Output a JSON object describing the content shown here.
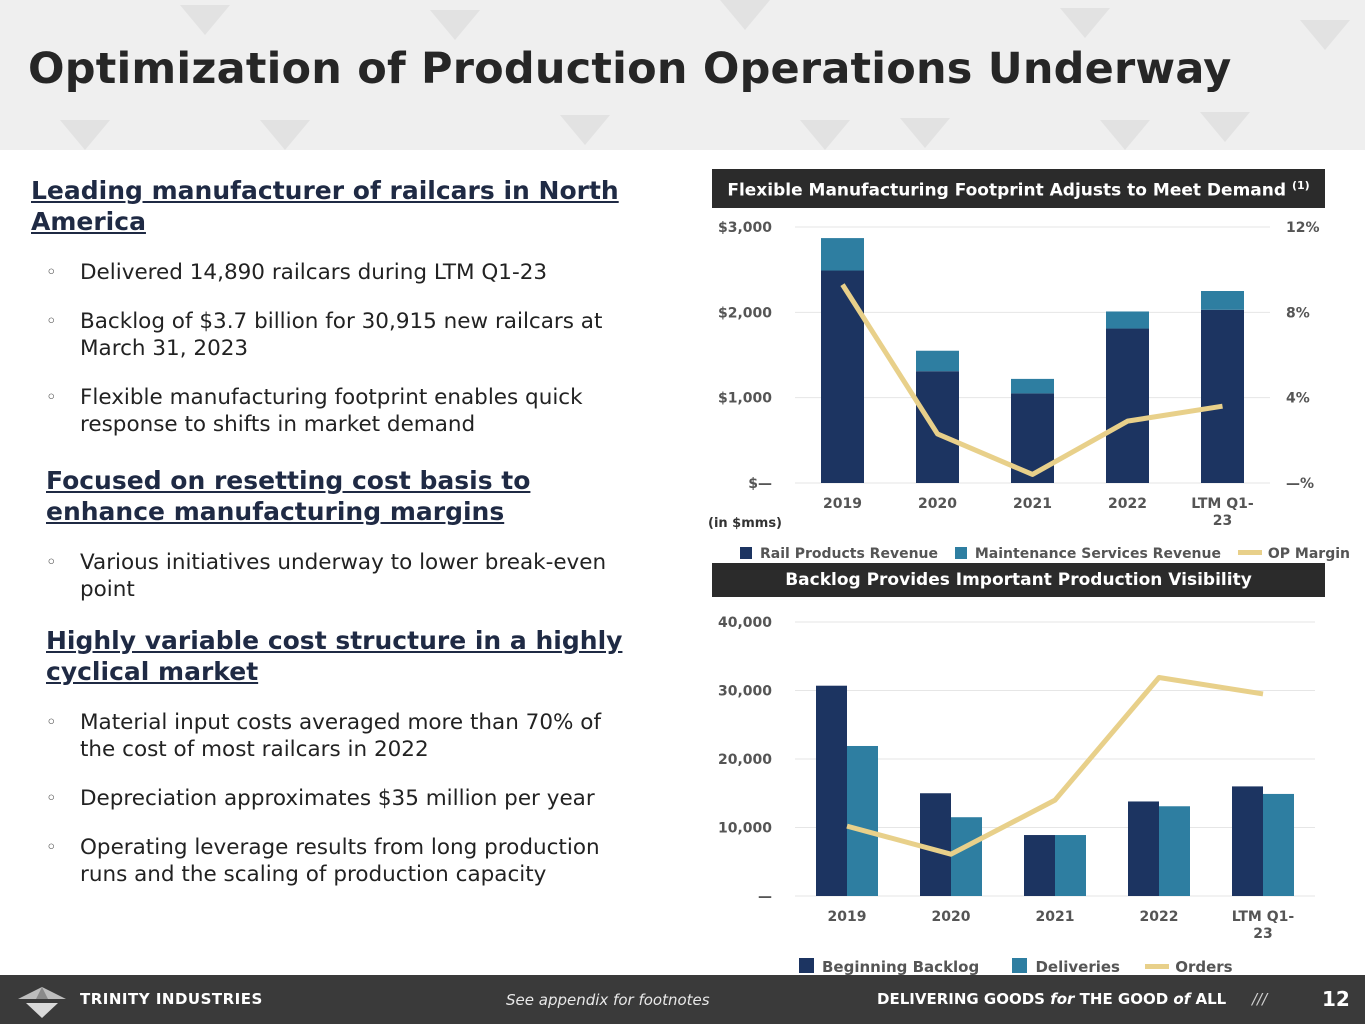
{
  "title": "Optimization of Production Operations Underway",
  "sections": [
    {
      "heading": [
        "Leading manufacturer of railcars in North",
        "America"
      ],
      "bullets": [
        [
          "Delivered 14,890 railcars during LTM Q1-23"
        ],
        [
          "Backlog of $3.7 billion for 30,915 new railcars at",
          "March 31, 2023"
        ],
        [
          "Flexible manufacturing footprint enables quick",
          "response to shifts in market demand"
        ]
      ]
    },
    {
      "heading": [
        "Focused on resetting cost basis to",
        "enhance manufacturing margins"
      ],
      "bullets": [
        [
          "Various initiatives underway to lower break-even",
          "point"
        ]
      ]
    },
    {
      "heading": [
        "Highly variable cost structure in a highly",
        "cyclical market"
      ],
      "bullets": [
        [
          "Material input costs averaged more than 70% of",
          "the cost of most railcars in 2022"
        ],
        [
          "Depreciation approximates $35 million per year"
        ],
        [
          "Operating leverage results from long production",
          "runs and the scaling of production capacity"
        ]
      ]
    }
  ],
  "bullet_glyph": "◦",
  "chart_titles": {
    "chart1": "Flexible Manufacturing Footprint Adjusts to Meet Demand",
    "chart1_sup": "(1)",
    "chart2": "Backlog Provides Important Production Visibility"
  },
  "chart_data": [
    {
      "type": "bar",
      "stacked": true,
      "title": "Flexible Manufacturing Footprint Adjusts to Meet Demand",
      "categories": [
        "2019",
        "2020",
        "2021",
        "2022",
        "LTM Q1-23"
      ],
      "series": [
        {
          "name": "Rail Products Revenue",
          "kind": "bar",
          "color": "#1c3461",
          "values": [
            2490,
            1310,
            1050,
            1810,
            2030
          ]
        },
        {
          "name": "Maintenance Services Revenue",
          "kind": "bar",
          "color": "#2e7ea1",
          "values": [
            380,
            240,
            170,
            200,
            220
          ]
        },
        {
          "name": "OP Margin",
          "kind": "line",
          "axis": "right",
          "color": "#e8d08a",
          "values": [
            9.3,
            2.3,
            0.4,
            2.9,
            3.6
          ]
        }
      ],
      "ylim": [
        0,
        3000
      ],
      "yticks": [
        "$—",
        "$1,000",
        "$2,000",
        "$3,000"
      ],
      "y2lim": [
        0,
        12
      ],
      "y2ticks": [
        "—%",
        "4%",
        "8%",
        "12%"
      ],
      "unit_note": "(in $mms)",
      "legend": "bottom"
    },
    {
      "type": "bar",
      "stacked": false,
      "title": "Backlog Provides Important Production Visibility",
      "categories": [
        "2019",
        "2020",
        "2021",
        "2022",
        "LTM Q1-23"
      ],
      "series": [
        {
          "name": "Beginning Backlog",
          "kind": "bar",
          "color": "#1c3461",
          "values": [
            30700,
            15000,
            8900,
            13800,
            16000
          ]
        },
        {
          "name": "Deliveries",
          "kind": "bar",
          "color": "#2e7ea1",
          "values": [
            21900,
            11500,
            8900,
            13100,
            14900
          ]
        },
        {
          "name": "Orders",
          "kind": "line",
          "color": "#e8d08a",
          "values": [
            10200,
            6100,
            14000,
            31900,
            29500
          ]
        }
      ],
      "ylim": [
        0,
        40000
      ],
      "yticks": [
        "—",
        "10,000",
        "20,000",
        "30,000",
        "40,000"
      ],
      "legend": "bottom"
    }
  ],
  "footer": {
    "brand": "TRINITY INDUSTRIES",
    "note": "See appendix for footnotes",
    "slogan_a": "DELIVERING GOODS ",
    "slogan_b": "for",
    "slogan_c": " THE GOOD ",
    "slogan_d": "of",
    "slogan_e": " ALL",
    "slashes": "///",
    "page": "12"
  }
}
